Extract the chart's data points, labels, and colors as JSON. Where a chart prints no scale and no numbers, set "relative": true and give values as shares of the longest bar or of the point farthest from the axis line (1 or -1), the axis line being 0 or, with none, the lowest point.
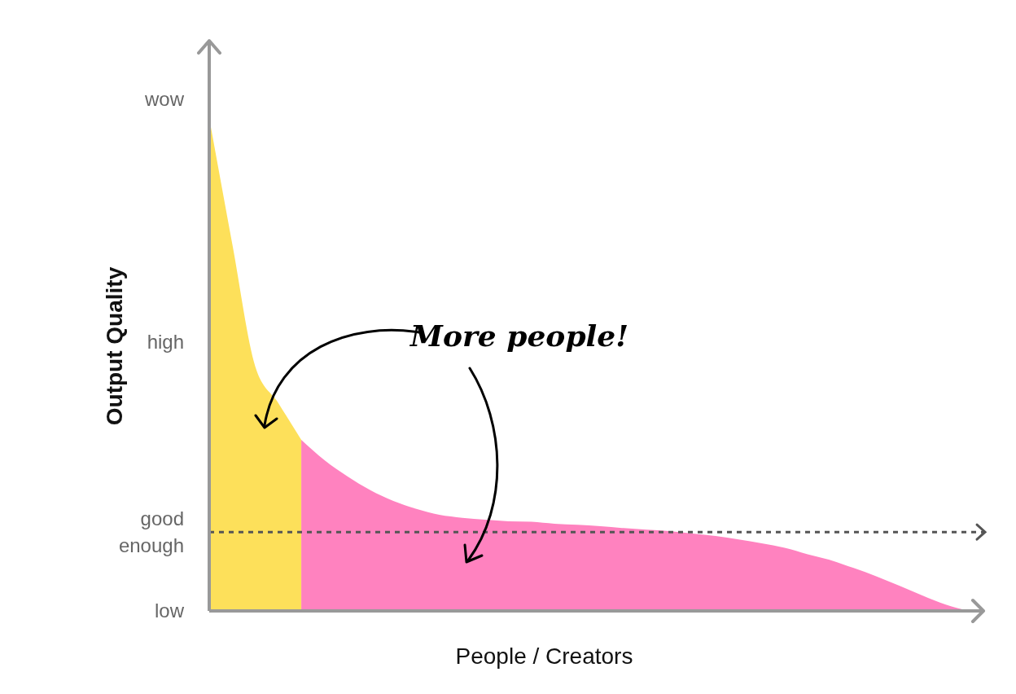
{
  "chart_data": {
    "type": "area",
    "xlabel": "People / Creators",
    "ylabel": "Output Quality",
    "relative": true,
    "categories": [
      null,
      null,
      null,
      null,
      null,
      null,
      null,
      null,
      null,
      null,
      null,
      null,
      null,
      null,
      null,
      null,
      null,
      null,
      null,
      null,
      null,
      null,
      null,
      null,
      null,
      null,
      null,
      null,
      null,
      null,
      null,
      null,
      null,
      null
    ],
    "series": [
      {
        "color": "#fde05a",
        "values": [
          1,
          0.745,
          0.496,
          0.422,
          0.347,
          null,
          null,
          null,
          null,
          null,
          null,
          null,
          null,
          null,
          null,
          null,
          null,
          null,
          null,
          null,
          null,
          null,
          null,
          null,
          null,
          null,
          null,
          null,
          null,
          null,
          null,
          null,
          null,
          null
        ]
      },
      {
        "color": "#ff82bf",
        "values": [
          null,
          null,
          null,
          null,
          0.347,
          0.306,
          0.273,
          0.245,
          0.223,
          0.207,
          0.195,
          0.189,
          0.185,
          0.182,
          0.181,
          0.177,
          0.175,
          0.172,
          0.168,
          0.165,
          0.162,
          0.157,
          0.152,
          0.145,
          0.137,
          0.128,
          0.115,
          0.103,
          0.087,
          0.07,
          0.051,
          0.031,
          0.013,
          0
        ]
      }
    ],
    "ref_lines": [
      {
        "axis": "y",
        "value": 0.16,
        "color": "#555555",
        "line_style": "dashed",
        "label": "good\nenough"
      }
    ],
    "annotations": [
      "low",
      "high",
      "wow",
      "More people!"
    ]
  }
}
